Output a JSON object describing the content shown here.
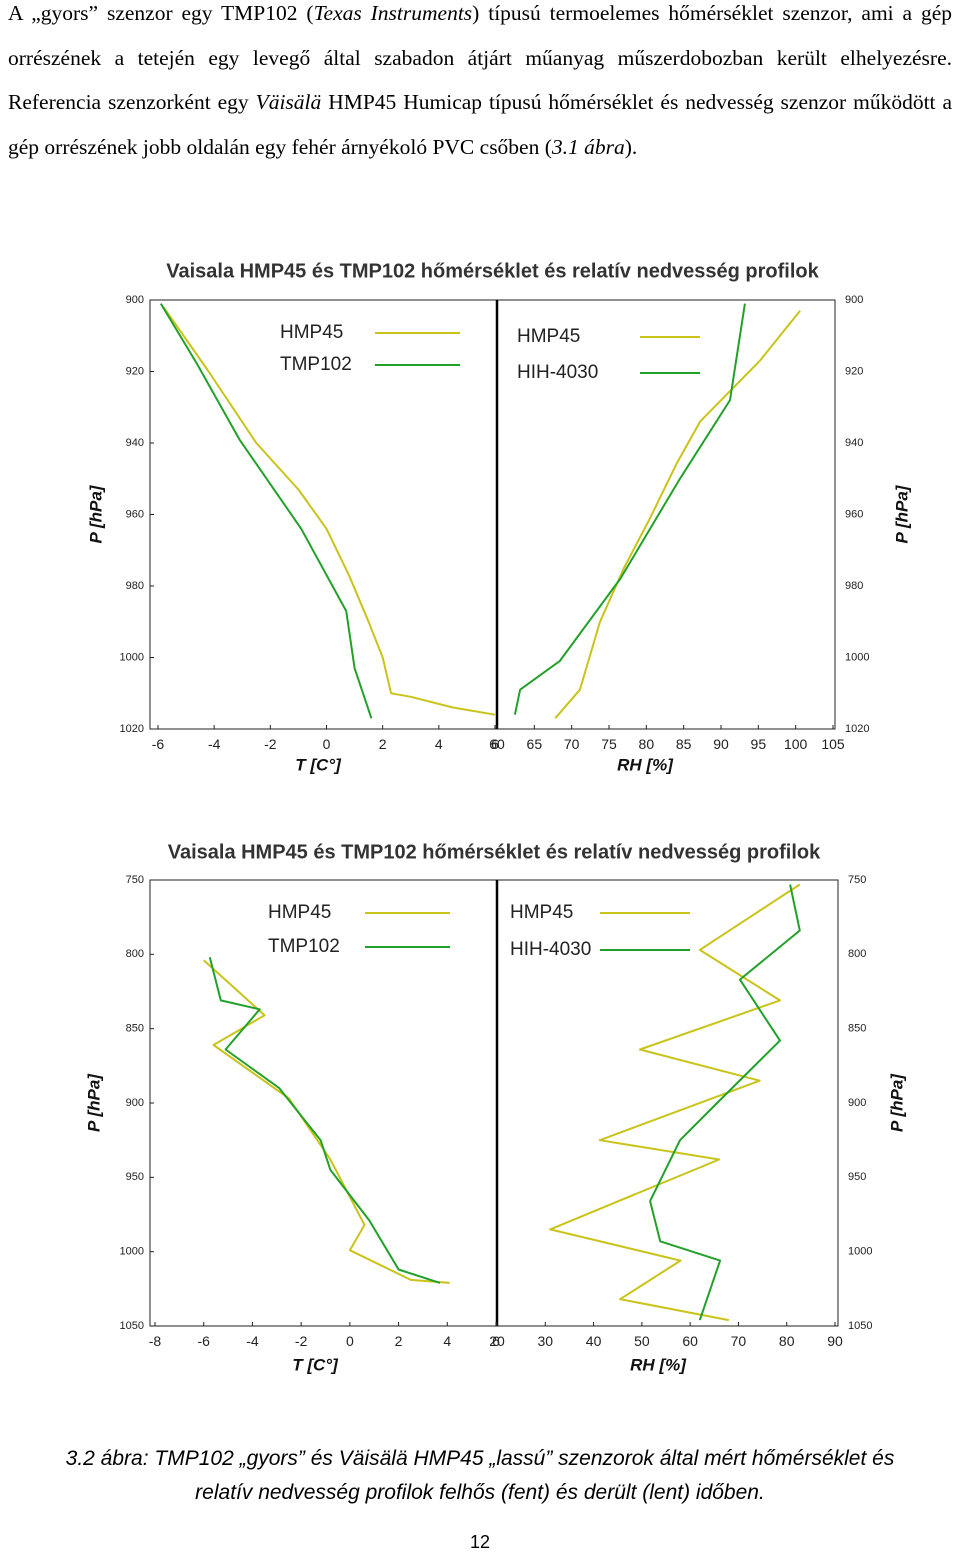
{
  "paragraph": [
    "A „gyors” szenzor egy TMP102 (",
    "Texas Instruments",
    ") típusú termoelemes hőmérséklet szenzor, ami a gép orrészének a tetején egy levegő által szabadon átjárt műanyag műszerdobozban került elhelyezésre. Referencia szenzorként egy ",
    "Väisälä",
    " HMP45 Humicap típusú hőmérséklet és nedvesség szenzor működött a gép orrészének jobb oldalán egy fehér árnyékoló PVC csőben (",
    "3.1 ábra",
    ")."
  ],
  "chart_data": [
    {
      "type": "line",
      "title": "Vaisala HMP45 és TMP102 hőmérséklet és relatív nedvesség profilok",
      "y_label": "P [hPa]",
      "ylim": [
        1020,
        900
      ],
      "yticks": [
        900,
        920,
        940,
        960,
        980,
        1000,
        1020
      ],
      "panels": [
        {
          "x_label": "T [C°]",
          "xlim": [
            -6,
            6
          ],
          "xticks": [
            -6,
            -4,
            -2,
            0,
            2,
            4,
            6
          ],
          "series": [
            {
              "name": "HMP45",
              "color": "#c9c31a",
              "x": [
                -5.8,
                -4.2,
                -2.5,
                -1.0,
                0.0,
                0.8,
                1.5,
                2.0,
                2.3,
                3.0,
                4.5,
                6.0
              ],
              "values": [
                902,
                920,
                940,
                953,
                964,
                977,
                990,
                1000,
                1010,
                1011,
                1014,
                1016
              ]
            },
            {
              "name": "TMP102",
              "color": "#22a12a",
              "x": [
                -5.9,
                -4.6,
                -3.1,
                -0.9,
                0.7,
                1.0,
                1.6
              ],
              "values": [
                901,
                918,
                939,
                964,
                987,
                1003,
                1017
              ]
            }
          ]
        },
        {
          "x_label": "RH [%]",
          "xlim": [
            60,
            105
          ],
          "xticks": [
            60,
            65,
            70,
            75,
            80,
            85,
            90,
            95,
            100,
            105
          ],
          "series": [
            {
              "name": "HMP45",
              "color": "#c9c31a",
              "x": [
                100.6,
                95.2,
                87.2,
                84.0,
                80.5,
                77.0,
                73.8,
                71.1,
                67.8
              ],
              "values": [
                903,
                917,
                934,
                946,
                961,
                975,
                990,
                1009,
                1017
              ]
            },
            {
              "name": "HIH-4030",
              "color": "#22a12a",
              "x": [
                93.2,
                91.2,
                84.5,
                76.5,
                68.4,
                63.1,
                62.4
              ],
              "values": [
                901,
                928,
                950,
                978,
                1001,
                1009,
                1016
              ]
            }
          ]
        }
      ]
    },
    {
      "type": "line",
      "title": "Vaisala HMP45 és TMP102 hőmérséklet és relatív nedvesség profilok",
      "y_label": "P [hPa]",
      "ylim": [
        1050,
        750
      ],
      "yticks": [
        750,
        800,
        850,
        900,
        950,
        1000,
        1050
      ],
      "panels": [
        {
          "x_label": "T [C°]",
          "xlim": [
            -8,
            6
          ],
          "xticks": [
            -8,
            -6,
            -4,
            -2,
            0,
            2,
            4,
            6
          ],
          "series": [
            {
              "name": "HMP45",
              "color": "#c9c31a",
              "x": [
                -6.0,
                -3.5,
                -5.6,
                -2.5,
                -0.8,
                0.6,
                0.0,
                2.5,
                4.1
              ],
              "values": [
                804,
                841,
                861,
                897,
                938,
                982,
                999,
                1019,
                1021
              ]
            },
            {
              "name": "TMP102",
              "color": "#22a12a",
              "x": [
                -5.75,
                -5.3,
                -3.7,
                -5.1,
                -2.9,
                -1.2,
                -0.8,
                0.8,
                2.0,
                3.7
              ],
              "values": [
                802,
                831,
                837,
                864,
                890,
                925,
                945,
                979,
                1012,
                1021
              ]
            }
          ]
        },
        {
          "x_label": "RH [%]",
          "xlim": [
            20,
            90
          ],
          "xticks": [
            20,
            30,
            40,
            50,
            60,
            70,
            80,
            90
          ],
          "series": [
            {
              "name": "HMP45",
              "color": "#c9c31a",
              "x": [
                82.7,
                62,
                78.6,
                49.6,
                74.4,
                41.3,
                66,
                31,
                58,
                45.5,
                68
              ],
              "values": [
                753,
                797,
                831,
                864,
                885,
                925,
                938,
                985,
                1006,
                1032,
                1046
              ]
            },
            {
              "name": "HIH-4030",
              "color": "#22a12a",
              "x": [
                80.7,
                82.7,
                70.3,
                78.6,
                66.2,
                57.9,
                51.7,
                53.8,
                66.2,
                62
              ],
              "values": [
                753,
                784,
                817,
                858,
                898,
                925,
                966,
                993,
                1006,
                1046
              ]
            }
          ]
        }
      ]
    }
  ],
  "caption": "3.2 ábra: TMP102 „gyors” és Väisälä HMP45 „lassú” szenzorok által mért hőmérséklet és relatív nedvesség profilok felhős (fent) és derült (lent) időben.",
  "page_number": "12"
}
